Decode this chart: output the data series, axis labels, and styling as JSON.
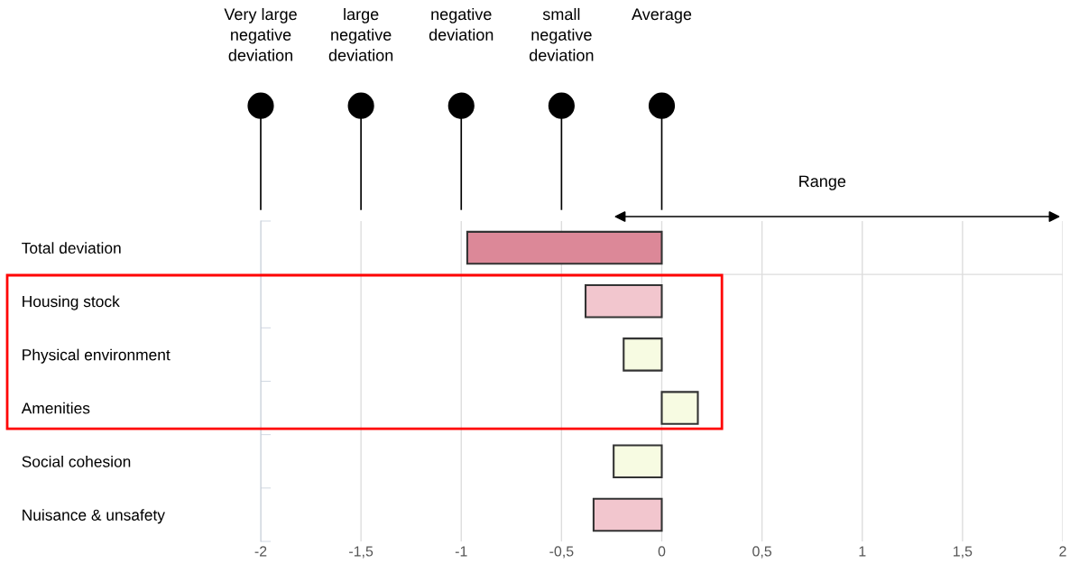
{
  "chart_data": {
    "type": "bar",
    "orientation": "horizontal",
    "categories": [
      "Total deviation",
      "Housing stock",
      "Physical environment",
      "Amenities",
      "Social cohesion",
      "Nuisance & unsafety"
    ],
    "values": [
      -0.97,
      -0.38,
      -0.19,
      0.18,
      -0.24,
      -0.34
    ],
    "colors": [
      "#dc8898",
      "#f2c6ce",
      "#f7fbe2",
      "#f7fbe2",
      "#f7fbe2",
      "#f2c6ce"
    ],
    "xlim": [
      -2,
      2
    ],
    "xticks": [
      {
        "value": -2,
        "label": "-2"
      },
      {
        "value": -1.5,
        "label": "-1,5"
      },
      {
        "value": -1,
        "label": "-1"
      },
      {
        "value": -0.5,
        "label": "-0,5"
      },
      0,
      {
        "value": 0.5,
        "label": "0,5"
      },
      1,
      {
        "value": 1.5,
        "label": "1,5"
      },
      2
    ],
    "grid": "x",
    "annotations": [
      "Very large\nnegative\ndeviation",
      "large\nnegative\ndeviation",
      "negative\ndeviation",
      "small\nnegative\ndeviation",
      "Average",
      "Range"
    ]
  }
}
